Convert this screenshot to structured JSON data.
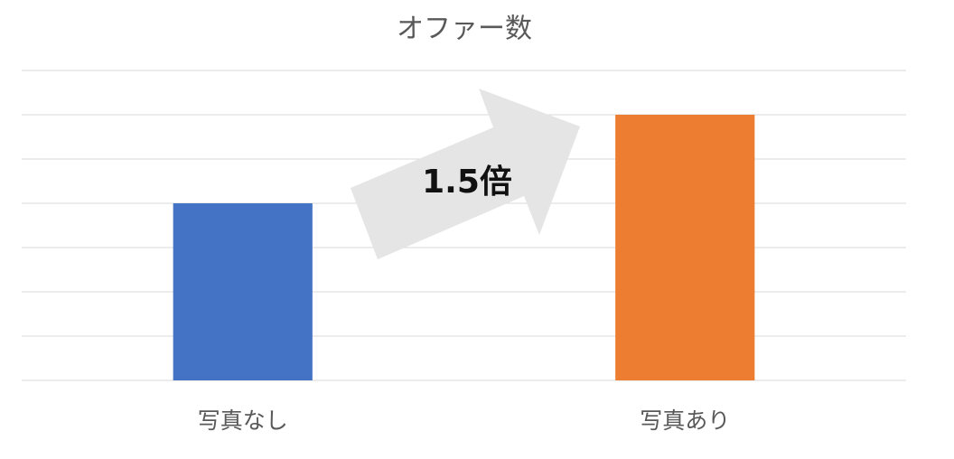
{
  "chart_data": {
    "type": "bar",
    "title": "オファー数",
    "categories": [
      "写真なし",
      "写真あり"
    ],
    "values": [
      4,
      6
    ],
    "colors": [
      "#4472c4",
      "#ed7d31"
    ],
    "ylim": [
      0,
      7
    ],
    "yticks": [
      0,
      1,
      2,
      3,
      4,
      5,
      6,
      7
    ],
    "grid": true,
    "show_tick_labels": false,
    "annotation": "1.5倍"
  }
}
